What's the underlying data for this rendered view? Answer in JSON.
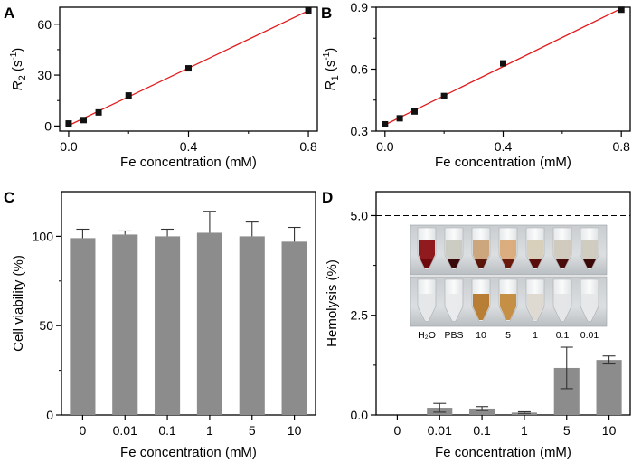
{
  "chart_data": [
    {
      "panel": "A",
      "type": "scatter",
      "fit_line": true,
      "x": [
        0,
        0.05,
        0.1,
        0.2,
        0.4,
        0.8
      ],
      "y": [
        1.5,
        3.5,
        8,
        18,
        34,
        68
      ],
      "xlabel": "Fe concentration (mM)",
      "ylabel": {
        "symbol": "R",
        "subscript": "2",
        "unit": " (s",
        "sup": "-1",
        "close": ")"
      },
      "xticks": [
        "0.0",
        "0.4",
        "0.8"
      ],
      "yticks": [
        "0",
        "30",
        "60"
      ],
      "xlim": [
        -0.03,
        0.83
      ],
      "ylim": [
        -3,
        70
      ],
      "fit_color": "#e31a1c",
      "marker_color": "#111111"
    },
    {
      "panel": "B",
      "type": "scatter",
      "fit_line": true,
      "x": [
        0,
        0.05,
        0.1,
        0.2,
        0.4,
        0.8
      ],
      "y": [
        0.333,
        0.362,
        0.395,
        0.47,
        0.628,
        0.888
      ],
      "xlabel": "Fe concentration (mM)",
      "ylabel": {
        "symbol": "R",
        "subscript": "1",
        "unit": " (s",
        "sup": "-1",
        "close": ")"
      },
      "xticks": [
        "0.0",
        "0.4",
        "0.8"
      ],
      "yticks": [
        "0.3",
        "0.6",
        "0.9"
      ],
      "xlim": [
        -0.03,
        0.83
      ],
      "ylim": [
        0.3,
        0.9
      ],
      "fit_color": "#e31a1c",
      "marker_color": "#111111"
    },
    {
      "panel": "C",
      "type": "bar",
      "categories": [
        "0",
        "0.01",
        "0.1",
        "1",
        "5",
        "10"
      ],
      "values": [
        99,
        101,
        100,
        102,
        100,
        97
      ],
      "errors": [
        5,
        2,
        4,
        12,
        8,
        8
      ],
      "xlabel": "Fe concentration (mM)",
      "ylabel": "Cell viability (%)",
      "yticks": [
        "0",
        "50",
        "100"
      ],
      "ylim": [
        0,
        125
      ],
      "bar_color": "#8c8c8c"
    },
    {
      "panel": "D",
      "type": "bar",
      "categories": [
        "0",
        "0.01",
        "0.1",
        "1",
        "5",
        "10"
      ],
      "values": [
        0,
        0.18,
        0.16,
        0.06,
        1.18,
        1.38
      ],
      "errors": [
        0,
        0.11,
        0.05,
        0.02,
        0.52,
        0.1
      ],
      "threshold": 5.0,
      "xlabel": "Fe concentration (mM)",
      "ylabel": "Hemolysis (%)",
      "yticks": [
        "0.0",
        "2.5",
        "5.0"
      ],
      "ylim": [
        0,
        5.6
      ],
      "bar_color": "#8c8c8c",
      "inset_labels": [
        "H₂O",
        "PBS",
        "10",
        "5",
        "1",
        "0.1",
        "0.01"
      ]
    }
  ]
}
